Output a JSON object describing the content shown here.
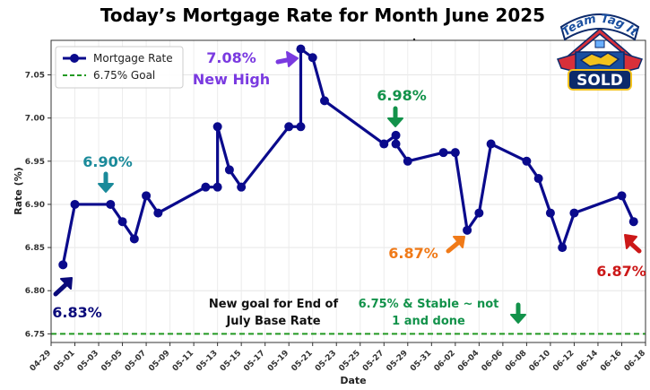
{
  "chart_data": {
    "type": "line",
    "title": "Today’s Mortgage Rate for Month June 2025",
    "xlabel": "Date",
    "ylabel": "Rate (%)",
    "xlim": [
      "2025-04-29",
      "2025-06-18"
    ],
    "ylim": [
      6.74,
      7.09
    ],
    "yticks": [
      6.75,
      6.8,
      6.85,
      6.9,
      6.95,
      7.0,
      7.05
    ],
    "ytick_labels": [
      "6.75",
      "6.80",
      "6.85",
      "6.90",
      "6.95",
      "7.00",
      "7.05"
    ],
    "xticks": [
      "2025-04-29",
      "2025-05-01",
      "2025-05-03",
      "2025-05-05",
      "2025-05-07",
      "2025-05-09",
      "2025-05-11",
      "2025-05-13",
      "2025-05-15",
      "2025-05-17",
      "2025-05-19",
      "2025-05-21",
      "2025-05-23",
      "2025-05-25",
      "2025-05-27",
      "2025-05-29",
      "2025-05-31",
      "2025-06-02",
      "2025-06-04",
      "2025-06-06",
      "2025-06-08",
      "2025-06-10",
      "2025-06-12",
      "2025-06-14",
      "2025-06-16",
      "2025-06-18"
    ],
    "xtick_labels": [
      "04-29",
      "05-01",
      "05-03",
      "05-05",
      "05-07",
      "05-09",
      "05-11",
      "05-13",
      "05-15",
      "05-17",
      "05-19",
      "05-21",
      "05-23",
      "05-25",
      "05-27",
      "05-29",
      "05-31",
      "06-02",
      "06-04",
      "06-06",
      "06-08",
      "06-10",
      "06-12",
      "06-14",
      "06-16",
      "06-18"
    ],
    "grid": true,
    "legend_position": "top-left",
    "series": [
      {
        "name": "Mortgage Rate",
        "color": "#0a0a8c",
        "x": [
          "2025-04-30",
          "2025-05-01",
          "2025-05-04",
          "2025-05-05",
          "2025-05-06",
          "2025-05-07",
          "2025-05-08",
          "2025-05-12",
          "2025-05-13",
          "2025-05-13",
          "2025-05-14",
          "2025-05-15",
          "2025-05-19",
          "2025-05-20",
          "2025-05-20",
          "2025-05-21",
          "2025-05-22",
          "2025-05-27",
          "2025-05-28",
          "2025-05-28",
          "2025-05-29",
          "2025-06-01",
          "2025-06-02",
          "2025-06-03",
          "2025-06-04",
          "2025-06-05",
          "2025-06-08",
          "2025-06-09",
          "2025-06-10",
          "2025-06-11",
          "2025-06-12",
          "2025-06-16",
          "2025-06-17"
        ],
        "values": [
          6.83,
          6.9,
          6.9,
          6.88,
          6.86,
          6.91,
          6.89,
          6.92,
          6.92,
          6.99,
          6.94,
          6.92,
          6.99,
          6.99,
          7.08,
          7.07,
          7.02,
          6.97,
          6.98,
          6.97,
          6.95,
          6.96,
          6.96,
          6.87,
          6.89,
          6.97,
          6.95,
          6.93,
          6.89,
          6.85,
          6.89,
          6.91,
          6.88
        ]
      }
    ],
    "reference_lines": [
      {
        "name": "6.75% Goal",
        "y": 6.75,
        "color": "#229922",
        "style": "dashed"
      }
    ],
    "annotations": [
      {
        "id": "ann-683",
        "lines": [
          "6.83%"
        ],
        "color": "#0a0a7a",
        "arrow": "up-right"
      },
      {
        "id": "ann-690",
        "lines": [
          "6.90%"
        ],
        "color": "#1a8a9a",
        "arrow": "down"
      },
      {
        "id": "ann-708",
        "lines": [
          "7.08%",
          "New High"
        ],
        "color": "#7a3ae0",
        "arrow": "right"
      },
      {
        "id": "ann-698",
        "lines": [
          "6.98%"
        ],
        "color": "#12924a",
        "arrow": "down"
      },
      {
        "id": "ann-687-orange",
        "lines": [
          "6.87%"
        ],
        "color": "#f07a18",
        "arrow": "up-right"
      },
      {
        "id": "ann-687-red",
        "lines": [
          "6.87%"
        ],
        "color": "#cc1818",
        "arrow": "up-left"
      },
      {
        "id": "ann-goal",
        "lines": [
          "New goal for End of",
          "July Base Rate"
        ],
        "color": "#111111",
        "arrow": "none"
      },
      {
        "id": "ann-stable",
        "lines": [
          "6.75% & Stable ~ not",
          "1 and done"
        ],
        "color": "#12924a",
        "arrow": "down"
      }
    ]
  },
  "logo": {
    "top_text": "Team Tag It",
    "bottom_text": "SOLD",
    "icon": "house-handshake-icon",
    "colors": {
      "blue": "#1a4fa0",
      "red": "#d8303a",
      "yellow": "#f3c21c",
      "navy": "#0c2a6b"
    }
  }
}
